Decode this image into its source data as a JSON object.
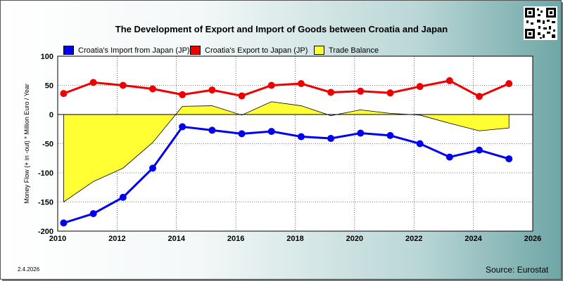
{
  "chart_data": {
    "type": "line",
    "title": "The Development of Export and Import of Goods between Croatia and Japan",
    "ylabel": "Money Flow (+ in -out) * Million Euro / Year",
    "xlabel": "",
    "xlim": [
      2010,
      2026
    ],
    "ylim": [
      -200,
      100
    ],
    "x_ticks": [
      "2010",
      "2012",
      "2014",
      "2016",
      "2018",
      "2020",
      "2022",
      "2024",
      "2026"
    ],
    "y_ticks": [
      "100",
      "50",
      "0",
      "-50",
      "-100",
      "-150",
      "-200"
    ],
    "grid": true,
    "legend_position": "top",
    "x": [
      2010.2,
      2011.2,
      2012.2,
      2013.2,
      2014.2,
      2015.2,
      2016.2,
      2017.2,
      2018.2,
      2019.2,
      2020.2,
      2021.2,
      2022.2,
      2023.2,
      2024.2,
      2025.2
    ],
    "series": [
      {
        "name": "Croatia's Import from Japan (JP)",
        "color": "#0000ee",
        "values": [
          -186,
          -170,
          -142,
          -92,
          -21,
          -27,
          -33,
          -29,
          -38,
          -41,
          -32,
          -36,
          -50,
          -73,
          -61,
          -76
        ]
      },
      {
        "name": "Croatia's Export to Japan (JP)",
        "color": "#ee0000",
        "values": [
          36,
          55,
          50,
          44,
          34,
          42,
          32,
          50,
          53,
          38,
          40,
          37,
          48,
          58,
          31,
          53
        ]
      },
      {
        "name": "Trade Balance",
        "color": "#ffff33",
        "type": "area",
        "values": [
          -150,
          -115,
          -92,
          -48,
          14,
          15,
          -1,
          22,
          15,
          -2,
          8,
          2,
          -1,
          -15,
          -28,
          -23
        ]
      }
    ]
  },
  "footer": {
    "date": "2.4.2026",
    "source": "Source: Eurostat"
  },
  "colors": {
    "plot_background": "#ffffff",
    "grid": "#000000"
  }
}
